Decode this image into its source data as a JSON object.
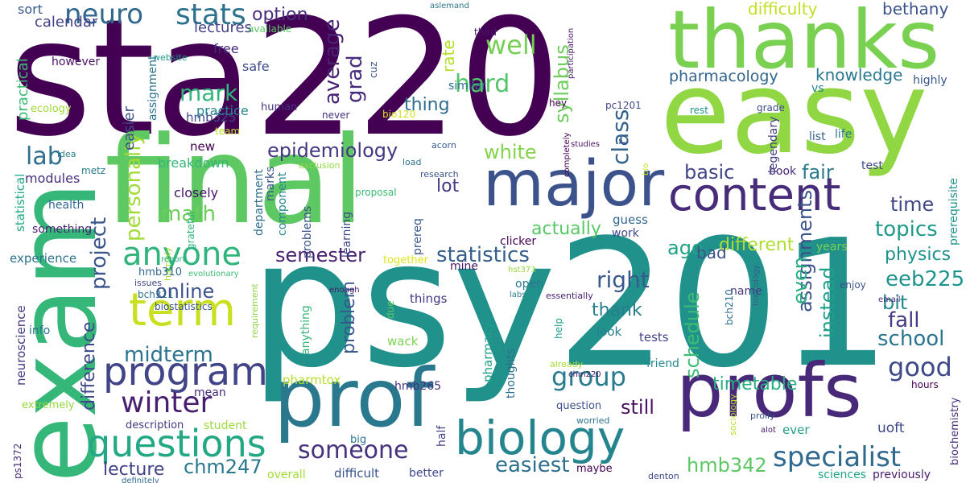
{
  "words": [
    {
      "text": "sta220",
      "color": "#440154"
    },
    {
      "text": "psy201",
      "color": "#21918c"
    },
    {
      "text": "exam",
      "color": "#35b779"
    },
    {
      "text": "final",
      "color": "#5ec962"
    },
    {
      "text": "easy",
      "color": "#90d743"
    },
    {
      "text": "thanks",
      "color": "#7ad151"
    },
    {
      "text": "prof",
      "color": "#2a788e"
    },
    {
      "text": "profs",
      "color": "#482878"
    },
    {
      "text": "major",
      "color": "#3b528b"
    },
    {
      "text": "biology",
      "color": "#25858e"
    },
    {
      "text": "content",
      "color": "#472c7a"
    },
    {
      "text": "term",
      "color": "#c8e020"
    },
    {
      "text": "program",
      "color": "#414487"
    },
    {
      "text": "questions",
      "color": "#22a884"
    },
    {
      "text": "anyone",
      "color": "#2fb47c"
    },
    {
      "text": "stats",
      "color": "#2c728e"
    },
    {
      "text": "neuro",
      "color": "#31688e"
    },
    {
      "text": "specialist",
      "color": "#306a8e"
    },
    {
      "text": "someone",
      "color": "#46327e"
    },
    {
      "text": "winter",
      "color": "#481f70"
    },
    {
      "text": "group",
      "color": "#287c8e"
    },
    {
      "text": "good",
      "color": "#3e4989"
    },
    {
      "text": "well",
      "color": "#75d054"
    },
    {
      "text": "epidemiology",
      "color": "#453781"
    },
    {
      "text": "statistics",
      "color": "#355f8d"
    },
    {
      "text": "semester",
      "color": "#482071"
    },
    {
      "text": "easiest",
      "color": "#2d708e"
    },
    {
      "text": "school",
      "color": "#2a768e"
    },
    {
      "text": "hmb342",
      "color": "#5cc863"
    },
    {
      "text": "chm247",
      "color": "#29798e"
    },
    {
      "text": "lab",
      "color": "#2e6e8e"
    },
    {
      "text": "mark",
      "color": "#31b57b"
    },
    {
      "text": "math",
      "color": "#6ccd5a"
    },
    {
      "text": "midterm",
      "color": "#2c738e"
    },
    {
      "text": "hard",
      "color": "#52c569"
    },
    {
      "text": "syllabus",
      "color": "#6ccd5a"
    },
    {
      "text": "class",
      "color": "#33638d"
    },
    {
      "text": "personally",
      "color": "#a2da37"
    },
    {
      "text": "grad",
      "color": "#472d7b"
    },
    {
      "text": "average",
      "color": "#482374"
    },
    {
      "text": "project",
      "color": "#3a548c"
    },
    {
      "text": "online",
      "color": "#3b518b"
    },
    {
      "text": "right",
      "color": "#38598c"
    },
    {
      "text": "topics",
      "color": "#1f9a8a"
    },
    {
      "text": "fall",
      "color": "#443983"
    },
    {
      "text": "eeb225",
      "color": "#1f948c"
    },
    {
      "text": "bit",
      "color": "#23898e"
    },
    {
      "text": "fair",
      "color": "#2a788e"
    },
    {
      "text": "time",
      "color": "#3f4788"
    },
    {
      "text": "ago",
      "color": "#20a386"
    },
    {
      "text": "still",
      "color": "#471164"
    },
    {
      "text": "timetable",
      "color": "#29af7f"
    },
    {
      "text": "schedule",
      "color": "#3dbc74"
    },
    {
      "text": "assignments",
      "color": "#3b528b"
    },
    {
      "text": "even",
      "color": "#26ad81"
    },
    {
      "text": "instead",
      "color": "#1fa088"
    },
    {
      "text": "basic",
      "color": "#404688"
    },
    {
      "text": "white",
      "color": "#84d44b"
    },
    {
      "text": "lecture",
      "color": "#414287"
    },
    {
      "text": "difference",
      "color": "#3e4989"
    },
    {
      "text": "problem",
      "color": "#38588c"
    },
    {
      "text": "thing",
      "color": "#2e6e8e"
    },
    {
      "text": "actually",
      "color": "#58c765"
    },
    {
      "text": "lot",
      "color": "#453882"
    },
    {
      "text": "different",
      "color": "#b0dd2f"
    },
    {
      "text": "physics",
      "color": "#20928c"
    },
    {
      "text": "thank",
      "color": "#277f8e"
    },
    {
      "text": "bad",
      "color": "#3a538b"
    },
    {
      "text": "option",
      "color": "#472f7d"
    },
    {
      "text": "knowledge",
      "color": "#2a788e"
    },
    {
      "text": "pharmacology",
      "color": "#32648e"
    },
    {
      "text": "difficulty",
      "color": "#c2df23"
    },
    {
      "text": "bethany",
      "color": "#3b528b"
    },
    {
      "text": "rate",
      "color": "#b5de2b"
    },
    {
      "text": "easier",
      "color": "#3d4e8a"
    },
    {
      "text": "calendar",
      "color": "#424086"
    },
    {
      "text": "lectures",
      "color": "#433e85"
    },
    {
      "text": "sort",
      "color": "#38588c"
    },
    {
      "text": "free",
      "color": "#472d7b"
    },
    {
      "text": "safe",
      "color": "#3e4989"
    },
    {
      "text": "practical",
      "color": "#3bbb75"
    },
    {
      "text": "however",
      "color": "#471063"
    },
    {
      "text": "available",
      "color": "#5cc863"
    },
    {
      "text": "website",
      "color": "#1f978b"
    },
    {
      "text": "hmb325",
      "color": "#3e4989"
    },
    {
      "text": "practice",
      "color": "#24868e"
    },
    {
      "text": "assignment",
      "color": "#2c738e"
    },
    {
      "text": "ecology",
      "color": "#a0da39"
    },
    {
      "text": "human",
      "color": "#46337f"
    },
    {
      "text": "hey",
      "color": "#440154"
    },
    {
      "text": "never",
      "color": "#46307e"
    },
    {
      "text": "bio120",
      "color": "#d2e21b"
    },
    {
      "text": "team",
      "color": "#bddf26"
    },
    {
      "text": "pc1201",
      "color": "#3f4889"
    },
    {
      "text": "new",
      "color": "#440154"
    },
    {
      "text": "breakdown",
      "color": "#34b679"
    },
    {
      "text": "closely",
      "color": "#471365"
    },
    {
      "text": "modules",
      "color": "#46307e"
    },
    {
      "text": "idea",
      "color": "#26818e"
    },
    {
      "text": "metz",
      "color": "#2a788e"
    },
    {
      "text": "health",
      "color": "#31688e"
    },
    {
      "text": "something",
      "color": "#482173"
    },
    {
      "text": "statistical",
      "color": "#23a983"
    },
    {
      "text": "experience",
      "color": "#2c728e"
    },
    {
      "text": "department",
      "color": "#2e6e8e"
    },
    {
      "text": "component",
      "color": "#24868e"
    },
    {
      "text": "marks",
      "color": "#3a548c"
    },
    {
      "text": "horribly",
      "color": "#a8db34"
    },
    {
      "text": "grateful",
      "color": "#2fb47c"
    },
    {
      "text": "report",
      "color": "#27ad81"
    },
    {
      "text": "hmb310",
      "color": "#31688e"
    },
    {
      "text": "evolutionary",
      "color": "#3dbc74"
    },
    {
      "text": "issues",
      "color": "#3f4788"
    },
    {
      "text": "bch311",
      "color": "#2e6f8e"
    },
    {
      "text": "biostatistics",
      "color": "#3b528b"
    },
    {
      "text": "neuroscience",
      "color": "#453882"
    },
    {
      "text": "info",
      "color": "#2c728e"
    },
    {
      "text": "requirement",
      "color": "#8ed645"
    },
    {
      "text": "extremely",
      "color": "#95d840"
    },
    {
      "text": "mean",
      "color": "#472a7a"
    },
    {
      "text": "student",
      "color": "#9bd93c"
    },
    {
      "text": "description",
      "color": "#453882"
    },
    {
      "text": "ps1372",
      "color": "#472c7a"
    },
    {
      "text": "definitely",
      "color": "#306a8e"
    },
    {
      "text": "pharmtox",
      "color": "#b5de2b"
    },
    {
      "text": "half",
      "color": "#424086"
    },
    {
      "text": "big",
      "color": "#2a788e"
    },
    {
      "text": "overall",
      "color": "#a2da37"
    },
    {
      "text": "difficult",
      "color": "#3a538b"
    },
    {
      "text": "better",
      "color": "#3f4788"
    },
    {
      "text": "anything",
      "color": "#34b679"
    },
    {
      "text": "enough",
      "color": "#481c6e"
    },
    {
      "text": "things",
      "color": "#453882"
    },
    {
      "text": "due",
      "color": "#5ec962"
    },
    {
      "text": "wack",
      "color": "#7ad151"
    },
    {
      "text": "pharmacy",
      "color": "#1f9f88"
    },
    {
      "text": "thoughts",
      "color": "#2d708e"
    },
    {
      "text": "hmb265",
      "color": "#46327e"
    },
    {
      "text": "question",
      "color": "#3b528b"
    },
    {
      "text": "worried",
      "color": "#2c728e"
    },
    {
      "text": "maybe",
      "color": "#440154"
    },
    {
      "text": "denton",
      "color": "#3e4989"
    },
    {
      "text": "sciences",
      "color": "#20a486"
    },
    {
      "text": "previously",
      "color": "#481a6c"
    },
    {
      "text": "prolly",
      "color": "#3b528b"
    },
    {
      "text": "alot",
      "color": "#481668"
    },
    {
      "text": "sociology",
      "color": "#b5de2b"
    },
    {
      "text": "ever",
      "color": "#1fa188"
    },
    {
      "text": "uoft",
      "color": "#3e4989"
    },
    {
      "text": "biochemistry",
      "color": "#472c7a"
    },
    {
      "text": "hours",
      "color": "#440154"
    },
    {
      "text": "friend",
      "color": "#238a8d"
    },
    {
      "text": "tests",
      "color": "#414487"
    },
    {
      "text": "look",
      "color": "#277f8e"
    },
    {
      "text": "help",
      "color": "#1fa088"
    },
    {
      "text": "already",
      "color": "#a8db34"
    },
    {
      "text": "chm220",
      "color": "#481b6d"
    },
    {
      "text": "hst373",
      "color": "#95d840"
    },
    {
      "text": "labs",
      "color": "#277f8e"
    },
    {
      "text": "essentially",
      "color": "#482071"
    },
    {
      "text": "open",
      "color": "#2a788e"
    },
    {
      "text": "name",
      "color": "#453882"
    },
    {
      "text": "bch210",
      "color": "#2d708e"
    },
    {
      "text": "toxicology",
      "color": "#355f8d"
    },
    {
      "text": "enjoy",
      "color": "#3b528b"
    },
    {
      "text": "email",
      "color": "#482878"
    },
    {
      "text": "years",
      "color": "#7ad151"
    },
    {
      "text": "guess",
      "color": "#32658e"
    },
    {
      "text": "work",
      "color": "#3e4989"
    },
    {
      "text": "clicker",
      "color": "#440154"
    },
    {
      "text": "mine",
      "color": "#481567"
    },
    {
      "text": "prereq",
      "color": "#39568c"
    },
    {
      "text": "learning",
      "color": "#3f4889"
    },
    {
      "text": "problems",
      "color": "#3b528b"
    },
    {
      "text": "together",
      "color": "#e2e418"
    },
    {
      "text": "proposal",
      "color": "#3dbc74"
    },
    {
      "text": "research",
      "color": "#3b528b"
    },
    {
      "text": "exclusion",
      "color": "#90d743"
    },
    {
      "text": "acorn",
      "color": "#38598c"
    },
    {
      "text": "load",
      "color": "#2c728e"
    },
    {
      "text": "studies",
      "color": "#481467"
    },
    {
      "text": "completely",
      "color": "#440154"
    },
    {
      "text": "bio",
      "color": "#c2df23"
    },
    {
      "text": "life",
      "color": "#2a768e"
    },
    {
      "text": "list",
      "color": "#32648e"
    },
    {
      "text": "book",
      "color": "#482878"
    },
    {
      "text": "test",
      "color": "#404588"
    },
    {
      "text": "prerequisite",
      "color": "#20928c"
    },
    {
      "text": "grade",
      "color": "#3e4989"
    },
    {
      "text": "rest",
      "color": "#21918c"
    },
    {
      "text": "legendary",
      "color": "#433e85"
    },
    {
      "text": "highly",
      "color": "#39568c"
    },
    {
      "text": "vs",
      "color": "#25848e"
    },
    {
      "text": "participation",
      "color": "#481769"
    },
    {
      "text": "similar",
      "color": "#2c728e"
    },
    {
      "text": "cuz",
      "color": "#3b528b"
    },
    {
      "text": "guys",
      "color": "#440154"
    },
    {
      "text": "third",
      "color": "#481668"
    },
    {
      "text": "aslemand",
      "color": "#2a788e"
    },
    {
      "text": "r",
      "color": "#3b528b"
    }
  ]
}
